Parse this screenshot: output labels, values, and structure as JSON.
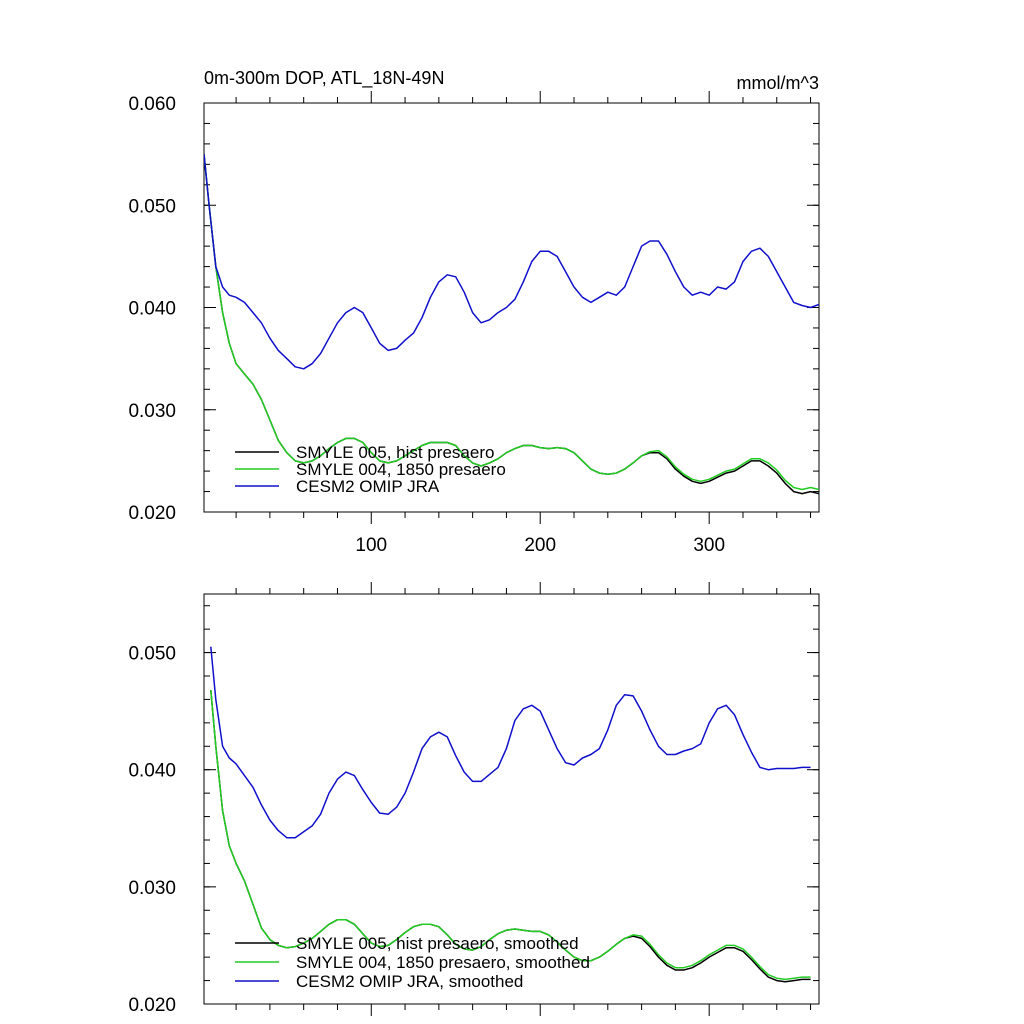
{
  "colors": {
    "black": "#000000",
    "green": "#22cc22",
    "blue": "#1010cc"
  },
  "chart_data": [
    {
      "type": "line",
      "title": "0m-300m DOP, ATL_18N-49N",
      "units": "mmol/m^3",
      "xlabel": "",
      "ylabel": "",
      "xlim": [
        1,
        365
      ],
      "ylim": [
        0.02,
        0.06
      ],
      "xticks": [
        100,
        200,
        300
      ],
      "xtick_labels": [
        "100",
        "200",
        "300"
      ],
      "yticks": [
        0.02,
        0.03,
        0.04,
        0.05,
        0.06
      ],
      "ytick_labels": [
        "0.020",
        "0.030",
        "0.040",
        "0.050",
        "0.060"
      ],
      "legend_position": "bottom-left",
      "series": [
        {
          "name": "SMYLE 005, hist presaero",
          "color": "#000000",
          "x": [
            1,
            4,
            8,
            12,
            16,
            20,
            25,
            30,
            35,
            40,
            45,
            50,
            55,
            60,
            65,
            70,
            75,
            80,
            85,
            90,
            95,
            100,
            105,
            110,
            115,
            120,
            125,
            130,
            135,
            140,
            145,
            150,
            155,
            160,
            165,
            170,
            175,
            180,
            185,
            190,
            195,
            200,
            205,
            210,
            215,
            220,
            225,
            230,
            235,
            240,
            245,
            250,
            255,
            260,
            265,
            270,
            275,
            280,
            285,
            290,
            295,
            300,
            305,
            310,
            315,
            320,
            325,
            330,
            335,
            340,
            345,
            350,
            355,
            360,
            365
          ],
          "y": [
            0.055,
            0.05,
            0.044,
            0.0395,
            0.0365,
            0.0345,
            0.0335,
            0.0325,
            0.031,
            0.029,
            0.027,
            0.0258,
            0.025,
            0.0248,
            0.025,
            0.0255,
            0.0262,
            0.0268,
            0.0272,
            0.0272,
            0.0268,
            0.0258,
            0.025,
            0.0248,
            0.025,
            0.0255,
            0.026,
            0.0265,
            0.0268,
            0.0268,
            0.0268,
            0.0265,
            0.0255,
            0.0248,
            0.0245,
            0.0248,
            0.0252,
            0.0258,
            0.0262,
            0.0265,
            0.0265,
            0.0263,
            0.0262,
            0.0263,
            0.0262,
            0.0258,
            0.025,
            0.0242,
            0.0238,
            0.0237,
            0.0238,
            0.0242,
            0.0248,
            0.0255,
            0.0258,
            0.0258,
            0.0252,
            0.0242,
            0.0235,
            0.023,
            0.0228,
            0.023,
            0.0234,
            0.0238,
            0.024,
            0.0245,
            0.025,
            0.025,
            0.0245,
            0.0238,
            0.0228,
            0.022,
            0.0218,
            0.022,
            0.0218
          ]
        },
        {
          "name": "SMYLE 004, 1850 presaero",
          "color": "#22cc22",
          "x": [
            1,
            4,
            8,
            12,
            16,
            20,
            25,
            30,
            35,
            40,
            45,
            50,
            55,
            60,
            65,
            70,
            75,
            80,
            85,
            90,
            95,
            100,
            105,
            110,
            115,
            120,
            125,
            130,
            135,
            140,
            145,
            150,
            155,
            160,
            165,
            170,
            175,
            180,
            185,
            190,
            195,
            200,
            205,
            210,
            215,
            220,
            225,
            230,
            235,
            240,
            245,
            250,
            255,
            260,
            265,
            270,
            275,
            280,
            285,
            290,
            295,
            300,
            305,
            310,
            315,
            320,
            325,
            330,
            335,
            340,
            345,
            350,
            355,
            360,
            365
          ],
          "y": [
            0.055,
            0.05,
            0.044,
            0.0395,
            0.0365,
            0.0345,
            0.0335,
            0.0325,
            0.031,
            0.029,
            0.027,
            0.0258,
            0.025,
            0.0248,
            0.025,
            0.0255,
            0.0262,
            0.0268,
            0.0272,
            0.0272,
            0.0268,
            0.0258,
            0.025,
            0.0248,
            0.025,
            0.0255,
            0.026,
            0.0265,
            0.0268,
            0.0268,
            0.0268,
            0.0265,
            0.0255,
            0.0248,
            0.0245,
            0.0248,
            0.0252,
            0.0258,
            0.0262,
            0.0265,
            0.0265,
            0.0263,
            0.0262,
            0.0263,
            0.0262,
            0.0258,
            0.025,
            0.0242,
            0.0238,
            0.0237,
            0.0238,
            0.0242,
            0.0248,
            0.0255,
            0.0259,
            0.026,
            0.0254,
            0.0244,
            0.0237,
            0.0232,
            0.023,
            0.0232,
            0.0236,
            0.024,
            0.0242,
            0.0247,
            0.0252,
            0.0252,
            0.0248,
            0.0241,
            0.0231,
            0.0224,
            0.0222,
            0.0224,
            0.0222
          ]
        },
        {
          "name": "CESM2 OMIP JRA",
          "color": "#1010cc",
          "x": [
            1,
            4,
            8,
            12,
            16,
            20,
            25,
            30,
            35,
            40,
            45,
            50,
            55,
            60,
            65,
            70,
            75,
            80,
            85,
            90,
            95,
            100,
            105,
            110,
            115,
            120,
            125,
            130,
            135,
            140,
            145,
            150,
            155,
            160,
            165,
            170,
            175,
            180,
            185,
            190,
            195,
            200,
            205,
            210,
            215,
            220,
            225,
            230,
            235,
            240,
            245,
            250,
            255,
            260,
            265,
            270,
            275,
            280,
            285,
            290,
            295,
            300,
            305,
            310,
            315,
            320,
            325,
            330,
            335,
            340,
            345,
            350,
            355,
            360,
            365
          ],
          "y": [
            0.055,
            0.05,
            0.044,
            0.042,
            0.0412,
            0.041,
            0.0405,
            0.0395,
            0.0385,
            0.037,
            0.0358,
            0.035,
            0.0342,
            0.034,
            0.0345,
            0.0355,
            0.037,
            0.0385,
            0.0395,
            0.04,
            0.0395,
            0.038,
            0.0365,
            0.0358,
            0.036,
            0.0368,
            0.0375,
            0.039,
            0.041,
            0.0425,
            0.0432,
            0.043,
            0.0415,
            0.0395,
            0.0385,
            0.0388,
            0.0395,
            0.04,
            0.0408,
            0.0425,
            0.0445,
            0.0455,
            0.0455,
            0.045,
            0.0435,
            0.042,
            0.041,
            0.0405,
            0.041,
            0.0415,
            0.0412,
            0.042,
            0.044,
            0.046,
            0.0465,
            0.0465,
            0.0452,
            0.0435,
            0.042,
            0.0412,
            0.0415,
            0.0412,
            0.042,
            0.0418,
            0.0425,
            0.0445,
            0.0455,
            0.0458,
            0.045,
            0.0435,
            0.042,
            0.0405,
            0.0402,
            0.04,
            0.0403
          ]
        }
      ]
    },
    {
      "type": "line",
      "title": "",
      "xlabel": "",
      "ylabel": "",
      "xlim": [
        1,
        365
      ],
      "ylim": [
        0.02,
        0.055
      ],
      "xticks": [
        100,
        200,
        300
      ],
      "yticks": [
        0.02,
        0.03,
        0.04,
        0.05
      ],
      "ytick_labels": [
        "0.020",
        "0.030",
        "0.040",
        "0.050"
      ],
      "legend_position": "bottom-left",
      "series": [
        {
          "name": "SMYLE 005, hist presaero, smoothed",
          "color": "#000000",
          "x": [
            5,
            8,
            12,
            16,
            20,
            25,
            30,
            35,
            40,
            45,
            50,
            55,
            60,
            65,
            70,
            75,
            80,
            85,
            90,
            95,
            100,
            105,
            110,
            115,
            120,
            125,
            130,
            135,
            140,
            145,
            150,
            155,
            160,
            165,
            170,
            175,
            180,
            185,
            190,
            195,
            200,
            205,
            210,
            215,
            220,
            225,
            230,
            235,
            240,
            245,
            250,
            255,
            260,
            265,
            270,
            275,
            280,
            285,
            290,
            295,
            300,
            305,
            310,
            315,
            320,
            325,
            330,
            335,
            340,
            345,
            350,
            355,
            360
          ],
          "y": [
            0.0468,
            0.042,
            0.0365,
            0.0335,
            0.032,
            0.0305,
            0.0285,
            0.0265,
            0.0255,
            0.025,
            0.0248,
            0.0249,
            0.0252,
            0.0256,
            0.0262,
            0.0268,
            0.0272,
            0.0272,
            0.0268,
            0.026,
            0.0252,
            0.0249,
            0.025,
            0.0255,
            0.0261,
            0.0266,
            0.0268,
            0.0268,
            0.0266,
            0.0259,
            0.0251,
            0.0247,
            0.0246,
            0.0249,
            0.0255,
            0.026,
            0.0263,
            0.0264,
            0.0263,
            0.0262,
            0.0262,
            0.0259,
            0.0253,
            0.0246,
            0.024,
            0.0237,
            0.0237,
            0.024,
            0.0245,
            0.0251,
            0.0256,
            0.0258,
            0.0256,
            0.0249,
            0.024,
            0.0233,
            0.0229,
            0.0229,
            0.0231,
            0.0235,
            0.024,
            0.0244,
            0.0248,
            0.0248,
            0.0245,
            0.0238,
            0.023,
            0.0223,
            0.022,
            0.0219,
            0.022,
            0.0221,
            0.0221
          ]
        },
        {
          "name": "SMYLE 004, 1850 presaero, smoothed",
          "color": "#22cc22",
          "x": [
            5,
            8,
            12,
            16,
            20,
            25,
            30,
            35,
            40,
            45,
            50,
            55,
            60,
            65,
            70,
            75,
            80,
            85,
            90,
            95,
            100,
            105,
            110,
            115,
            120,
            125,
            130,
            135,
            140,
            145,
            150,
            155,
            160,
            165,
            170,
            175,
            180,
            185,
            190,
            195,
            200,
            205,
            210,
            215,
            220,
            225,
            230,
            235,
            240,
            245,
            250,
            255,
            260,
            265,
            270,
            275,
            280,
            285,
            290,
            295,
            300,
            305,
            310,
            315,
            320,
            325,
            330,
            335,
            340,
            345,
            350,
            355,
            360
          ],
          "y": [
            0.0468,
            0.042,
            0.0365,
            0.0335,
            0.032,
            0.0305,
            0.0285,
            0.0265,
            0.0255,
            0.025,
            0.0248,
            0.0249,
            0.0252,
            0.0256,
            0.0262,
            0.0268,
            0.0272,
            0.0272,
            0.0268,
            0.026,
            0.0252,
            0.0249,
            0.025,
            0.0255,
            0.0261,
            0.0266,
            0.0268,
            0.0268,
            0.0266,
            0.0259,
            0.0251,
            0.0247,
            0.0246,
            0.0249,
            0.0255,
            0.026,
            0.0263,
            0.0264,
            0.0263,
            0.0262,
            0.0262,
            0.0259,
            0.0253,
            0.0246,
            0.024,
            0.0237,
            0.0237,
            0.024,
            0.0245,
            0.0251,
            0.0256,
            0.0259,
            0.0258,
            0.0251,
            0.0242,
            0.0235,
            0.0231,
            0.0231,
            0.0233,
            0.0237,
            0.0242,
            0.0246,
            0.025,
            0.025,
            0.0247,
            0.024,
            0.0232,
            0.0225,
            0.0222,
            0.0221,
            0.0222,
            0.0223,
            0.0223
          ]
        },
        {
          "name": "CESM2 OMIP JRA, smoothed",
          "color": "#1010cc",
          "x": [
            5,
            8,
            12,
            16,
            20,
            25,
            30,
            35,
            40,
            45,
            50,
            55,
            60,
            65,
            70,
            75,
            80,
            85,
            90,
            95,
            100,
            105,
            110,
            115,
            120,
            125,
            130,
            135,
            140,
            145,
            150,
            155,
            160,
            165,
            170,
            175,
            180,
            185,
            190,
            195,
            200,
            205,
            210,
            215,
            220,
            225,
            230,
            235,
            240,
            245,
            250,
            255,
            260,
            265,
            270,
            275,
            280,
            285,
            290,
            295,
            300,
            305,
            310,
            315,
            320,
            325,
            330,
            335,
            340,
            345,
            350,
            355,
            360
          ],
          "y": [
            0.0505,
            0.046,
            0.042,
            0.041,
            0.0405,
            0.0395,
            0.0385,
            0.037,
            0.0357,
            0.0348,
            0.0342,
            0.0342,
            0.0347,
            0.0352,
            0.0362,
            0.038,
            0.0392,
            0.0398,
            0.0395,
            0.0383,
            0.0372,
            0.0363,
            0.0362,
            0.0368,
            0.038,
            0.0398,
            0.0418,
            0.0428,
            0.0432,
            0.0428,
            0.0412,
            0.0398,
            0.039,
            0.039,
            0.0396,
            0.0402,
            0.0418,
            0.0442,
            0.0452,
            0.0455,
            0.045,
            0.0434,
            0.0418,
            0.0406,
            0.0404,
            0.041,
            0.0413,
            0.0418,
            0.0434,
            0.0455,
            0.0464,
            0.0463,
            0.045,
            0.0434,
            0.042,
            0.0413,
            0.0413,
            0.0416,
            0.0418,
            0.0422,
            0.044,
            0.0452,
            0.0455,
            0.0447,
            0.043,
            0.0415,
            0.0402,
            0.04,
            0.0401,
            0.0401,
            0.0401,
            0.0402,
            0.0402
          ]
        }
      ]
    }
  ]
}
